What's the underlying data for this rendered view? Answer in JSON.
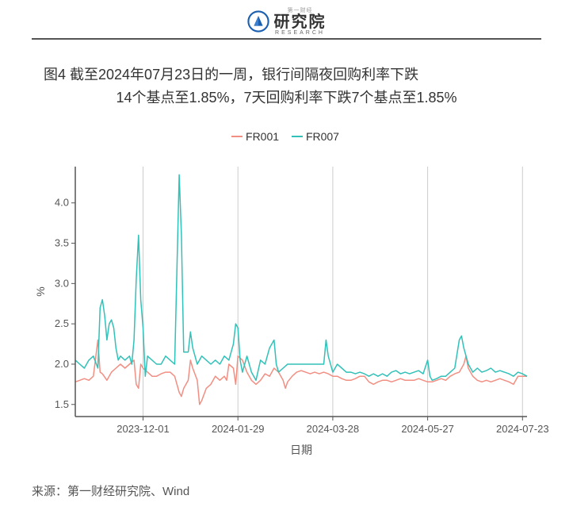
{
  "header": {
    "logo_cn": "研究院",
    "logo_en": "RESEARCH",
    "logo_super": "第一财经"
  },
  "title": {
    "line1": "图4  截至2024年07月23日的一周，银行间隔夜回购利率下跌",
    "line2": "14个基点至1.85%，7天回购利率下跌7个基点至1.85%"
  },
  "chart": {
    "type": "line",
    "background_color": "#ffffff",
    "panel_border_color": "#555555",
    "grid_color": "#cccccc",
    "axis_text_color": "#555555",
    "axis_text_fontsize": 13,
    "ylabel": "%",
    "ylabel_fontsize": 14,
    "xlabel": "日期",
    "xlabel_fontsize": 14,
    "y_ticks": [
      1.5,
      2.0,
      2.5,
      3.0,
      3.5,
      4.0
    ],
    "ylim": [
      1.35,
      4.45
    ],
    "x_tick_labels": [
      "2023-12-01",
      "2024-01-29",
      "2024-03-28",
      "2024-05-27",
      "2024-07-23"
    ],
    "x_tick_positions": [
      0.15,
      0.36,
      0.57,
      0.78,
      0.99
    ],
    "legend": {
      "items": [
        {
          "label": "FR001",
          "color": "#f28e82"
        },
        {
          "label": "FR007",
          "color": "#32c1b8"
        }
      ]
    },
    "series": [
      {
        "name": "FR001",
        "color": "#f28e82",
        "line_width": 1.5,
        "data": [
          [
            0.0,
            1.78
          ],
          [
            0.01,
            1.8
          ],
          [
            0.02,
            1.82
          ],
          [
            0.03,
            1.8
          ],
          [
            0.04,
            1.85
          ],
          [
            0.05,
            2.3
          ],
          [
            0.055,
            1.9
          ],
          [
            0.06,
            1.88
          ],
          [
            0.07,
            1.8
          ],
          [
            0.08,
            1.9
          ],
          [
            0.09,
            1.95
          ],
          [
            0.1,
            2.0
          ],
          [
            0.11,
            1.95
          ],
          [
            0.12,
            2.0
          ],
          [
            0.13,
            2.05
          ],
          [
            0.135,
            1.75
          ],
          [
            0.14,
            1.7
          ],
          [
            0.145,
            2.0
          ],
          [
            0.15,
            1.95
          ],
          [
            0.16,
            1.9
          ],
          [
            0.17,
            1.85
          ],
          [
            0.18,
            1.85
          ],
          [
            0.19,
            1.88
          ],
          [
            0.2,
            1.9
          ],
          [
            0.21,
            1.9
          ],
          [
            0.22,
            1.85
          ],
          [
            0.23,
            1.65
          ],
          [
            0.235,
            1.6
          ],
          [
            0.24,
            1.7
          ],
          [
            0.25,
            1.8
          ],
          [
            0.255,
            2.05
          ],
          [
            0.26,
            1.95
          ],
          [
            0.27,
            1.8
          ],
          [
            0.275,
            1.5
          ],
          [
            0.28,
            1.55
          ],
          [
            0.29,
            1.7
          ],
          [
            0.3,
            1.75
          ],
          [
            0.31,
            1.85
          ],
          [
            0.32,
            1.8
          ],
          [
            0.33,
            1.85
          ],
          [
            0.335,
            1.8
          ],
          [
            0.34,
            2.0
          ],
          [
            0.35,
            1.95
          ],
          [
            0.355,
            1.75
          ],
          [
            0.36,
            2.1
          ],
          [
            0.37,
            2.05
          ],
          [
            0.38,
            1.9
          ],
          [
            0.39,
            1.8
          ],
          [
            0.4,
            1.75
          ],
          [
            0.41,
            1.8
          ],
          [
            0.42,
            1.88
          ],
          [
            0.43,
            1.85
          ],
          [
            0.44,
            1.95
          ],
          [
            0.45,
            1.9
          ],
          [
            0.46,
            1.8
          ],
          [
            0.465,
            1.7
          ],
          [
            0.47,
            1.78
          ],
          [
            0.48,
            1.85
          ],
          [
            0.49,
            1.9
          ],
          [
            0.5,
            1.92
          ],
          [
            0.51,
            1.9
          ],
          [
            0.52,
            1.88
          ],
          [
            0.53,
            1.9
          ],
          [
            0.54,
            1.88
          ],
          [
            0.55,
            1.9
          ],
          [
            0.56,
            1.88
          ],
          [
            0.57,
            1.85
          ],
          [
            0.58,
            1.85
          ],
          [
            0.59,
            1.82
          ],
          [
            0.6,
            1.8
          ],
          [
            0.61,
            1.8
          ],
          [
            0.62,
            1.82
          ],
          [
            0.63,
            1.85
          ],
          [
            0.64,
            1.85
          ],
          [
            0.65,
            1.78
          ],
          [
            0.66,
            1.75
          ],
          [
            0.67,
            1.78
          ],
          [
            0.68,
            1.8
          ],
          [
            0.69,
            1.8
          ],
          [
            0.7,
            1.78
          ],
          [
            0.71,
            1.8
          ],
          [
            0.72,
            1.82
          ],
          [
            0.73,
            1.8
          ],
          [
            0.74,
            1.8
          ],
          [
            0.75,
            1.8
          ],
          [
            0.76,
            1.82
          ],
          [
            0.77,
            1.8
          ],
          [
            0.78,
            1.78
          ],
          [
            0.79,
            1.78
          ],
          [
            0.8,
            1.8
          ],
          [
            0.81,
            1.82
          ],
          [
            0.82,
            1.8
          ],
          [
            0.83,
            1.85
          ],
          [
            0.84,
            1.88
          ],
          [
            0.85,
            1.9
          ],
          [
            0.86,
            2.0
          ],
          [
            0.865,
            2.1
          ],
          [
            0.87,
            1.95
          ],
          [
            0.88,
            1.85
          ],
          [
            0.89,
            1.8
          ],
          [
            0.9,
            1.78
          ],
          [
            0.91,
            1.8
          ],
          [
            0.92,
            1.78
          ],
          [
            0.93,
            1.8
          ],
          [
            0.94,
            1.82
          ],
          [
            0.95,
            1.8
          ],
          [
            0.96,
            1.78
          ],
          [
            0.97,
            1.75
          ],
          [
            0.98,
            1.85
          ],
          [
            0.99,
            1.85
          ],
          [
            1.0,
            1.85
          ]
        ]
      },
      {
        "name": "FR007",
        "color": "#32c1b8",
        "line_width": 1.5,
        "data": [
          [
            0.0,
            2.05
          ],
          [
            0.01,
            2.0
          ],
          [
            0.02,
            1.95
          ],
          [
            0.03,
            2.05
          ],
          [
            0.04,
            2.1
          ],
          [
            0.05,
            1.95
          ],
          [
            0.055,
            2.7
          ],
          [
            0.06,
            2.8
          ],
          [
            0.065,
            2.6
          ],
          [
            0.07,
            2.3
          ],
          [
            0.075,
            2.5
          ],
          [
            0.08,
            2.55
          ],
          [
            0.085,
            2.45
          ],
          [
            0.09,
            2.2
          ],
          [
            0.095,
            2.05
          ],
          [
            0.1,
            2.1
          ],
          [
            0.11,
            2.05
          ],
          [
            0.12,
            2.1
          ],
          [
            0.125,
            2.0
          ],
          [
            0.13,
            2.3
          ],
          [
            0.135,
            3.05
          ],
          [
            0.14,
            3.6
          ],
          [
            0.145,
            2.8
          ],
          [
            0.15,
            2.45
          ],
          [
            0.155,
            1.85
          ],
          [
            0.16,
            2.1
          ],
          [
            0.17,
            2.05
          ],
          [
            0.18,
            2.0
          ],
          [
            0.19,
            2.0
          ],
          [
            0.2,
            2.1
          ],
          [
            0.21,
            2.05
          ],
          [
            0.22,
            2.0
          ],
          [
            0.225,
            3.2
          ],
          [
            0.23,
            4.35
          ],
          [
            0.235,
            3.6
          ],
          [
            0.24,
            2.15
          ],
          [
            0.25,
            2.15
          ],
          [
            0.255,
            2.4
          ],
          [
            0.26,
            2.2
          ],
          [
            0.27,
            2.0
          ],
          [
            0.28,
            2.1
          ],
          [
            0.29,
            2.05
          ],
          [
            0.3,
            2.0
          ],
          [
            0.31,
            2.05
          ],
          [
            0.32,
            2.0
          ],
          [
            0.33,
            2.1
          ],
          [
            0.34,
            2.05
          ],
          [
            0.35,
            2.25
          ],
          [
            0.355,
            2.5
          ],
          [
            0.36,
            2.45
          ],
          [
            0.365,
            2.05
          ],
          [
            0.37,
            1.9
          ],
          [
            0.38,
            2.1
          ],
          [
            0.39,
            1.9
          ],
          [
            0.4,
            1.8
          ],
          [
            0.41,
            2.05
          ],
          [
            0.42,
            2.0
          ],
          [
            0.43,
            2.2
          ],
          [
            0.44,
            2.3
          ],
          [
            0.445,
            2.0
          ],
          [
            0.45,
            1.9
          ],
          [
            0.46,
            1.95
          ],
          [
            0.47,
            2.0
          ],
          [
            0.48,
            2.0
          ],
          [
            0.49,
            2.0
          ],
          [
            0.5,
            2.0
          ],
          [
            0.51,
            2.0
          ],
          [
            0.52,
            2.0
          ],
          [
            0.53,
            2.0
          ],
          [
            0.54,
            2.0
          ],
          [
            0.55,
            2.0
          ],
          [
            0.555,
            2.3
          ],
          [
            0.56,
            2.1
          ],
          [
            0.57,
            1.9
          ],
          [
            0.58,
            2.0
          ],
          [
            0.59,
            1.95
          ],
          [
            0.6,
            1.9
          ],
          [
            0.61,
            1.9
          ],
          [
            0.62,
            1.88
          ],
          [
            0.63,
            1.9
          ],
          [
            0.64,
            1.88
          ],
          [
            0.65,
            1.85
          ],
          [
            0.66,
            1.88
          ],
          [
            0.67,
            1.85
          ],
          [
            0.68,
            1.88
          ],
          [
            0.69,
            1.85
          ],
          [
            0.7,
            1.9
          ],
          [
            0.71,
            1.92
          ],
          [
            0.72,
            1.88
          ],
          [
            0.73,
            1.9
          ],
          [
            0.74,
            1.88
          ],
          [
            0.75,
            1.9
          ],
          [
            0.76,
            1.92
          ],
          [
            0.77,
            1.88
          ],
          [
            0.78,
            2.05
          ],
          [
            0.785,
            1.85
          ],
          [
            0.79,
            1.8
          ],
          [
            0.8,
            1.82
          ],
          [
            0.81,
            1.85
          ],
          [
            0.82,
            1.85
          ],
          [
            0.83,
            1.9
          ],
          [
            0.84,
            1.95
          ],
          [
            0.85,
            2.3
          ],
          [
            0.855,
            2.35
          ],
          [
            0.86,
            2.2
          ],
          [
            0.87,
            2.0
          ],
          [
            0.88,
            1.9
          ],
          [
            0.89,
            1.95
          ],
          [
            0.9,
            1.9
          ],
          [
            0.91,
            1.92
          ],
          [
            0.92,
            1.95
          ],
          [
            0.93,
            1.9
          ],
          [
            0.94,
            1.92
          ],
          [
            0.95,
            1.9
          ],
          [
            0.96,
            1.88
          ],
          [
            0.97,
            1.85
          ],
          [
            0.98,
            1.9
          ],
          [
            0.99,
            1.88
          ],
          [
            1.0,
            1.85
          ]
        ]
      }
    ]
  },
  "source": "来源：第一财经研究院、Wind"
}
